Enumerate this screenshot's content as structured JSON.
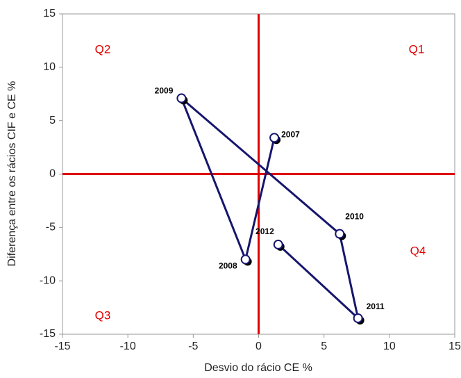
{
  "chart_data": {
    "type": "scatter",
    "x_label": "Desvio do rácio CE %",
    "y_label": "Diferença entre os rácios CIF e CE %",
    "labels": [
      "2007",
      "2008",
      "2009",
      "2010",
      "2011",
      "2012"
    ],
    "x": [
      1.2,
      -1.0,
      -5.9,
      6.2,
      7.6,
      1.5
    ],
    "y": [
      3.4,
      -8.0,
      7.1,
      -5.6,
      -13.5,
      -6.6
    ],
    "connected": true,
    "color": "#16166e",
    "quadrant_labels": [
      "Q1",
      "Q2",
      "Q3",
      "Q4"
    ],
    "zero_line_color": "#e00000",
    "xlim": [
      -15,
      15
    ],
    "xticks": [
      -15,
      -10,
      -5,
      0,
      5,
      10,
      15
    ],
    "ylim": [
      -15,
      15
    ],
    "yticks": [
      -15,
      -10,
      -5,
      0,
      5,
      10,
      15
    ]
  }
}
